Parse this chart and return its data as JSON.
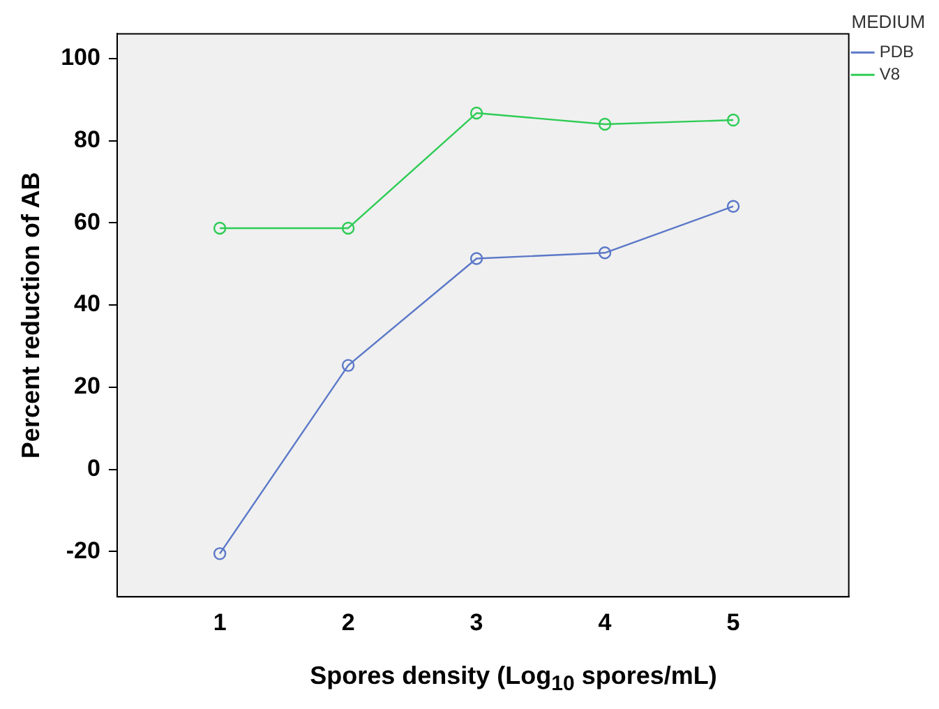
{
  "chart_data": {
    "type": "line",
    "xlabel": "Spores density (Log$_{10}$ spores/mL)",
    "ylabel": "Percent reduction of AB",
    "legend_title": "MEDIUM",
    "legend": "top right",
    "marker": "circle",
    "grid": false,
    "x": [
      1,
      2,
      3,
      4,
      5
    ],
    "xlim": [
      0.2,
      5.9
    ],
    "xticks": [
      1,
      2,
      3,
      4,
      5
    ],
    "ylim": [
      -31,
      106
    ],
    "yticks": [
      -20,
      0,
      20,
      40,
      60,
      80,
      100
    ],
    "series": [
      {
        "name": "PDB",
        "color": "#5b78c8",
        "values": [
          -20.5,
          25.3,
          51.3,
          52.7,
          64
        ]
      },
      {
        "name": "V8",
        "color": "#2ecc55",
        "values": [
          58.7,
          58.7,
          86.7,
          84,
          85
        ]
      }
    ]
  }
}
